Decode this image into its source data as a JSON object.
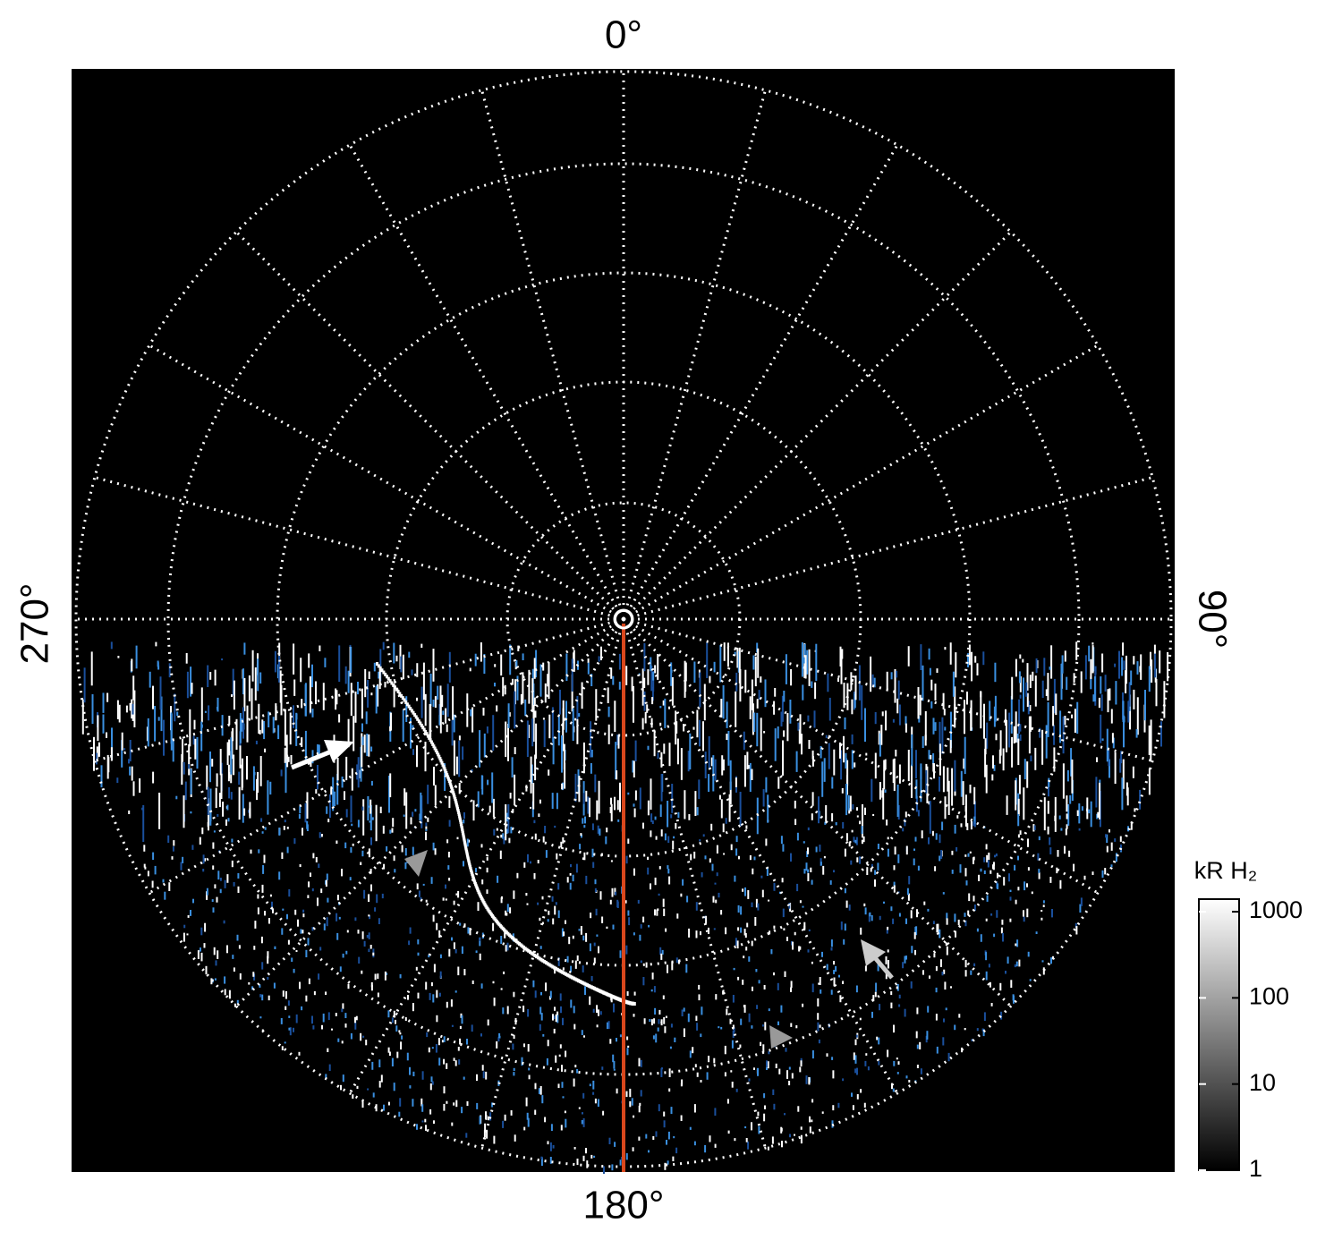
{
  "labels": {
    "top": "0°",
    "right": "90°",
    "bottom": "180°",
    "left": "270°"
  },
  "colorbar": {
    "title": "kR H₂",
    "scale": "log",
    "lim": [
      1,
      1400
    ],
    "ticks": [
      1,
      10,
      100,
      1000
    ]
  }
}
